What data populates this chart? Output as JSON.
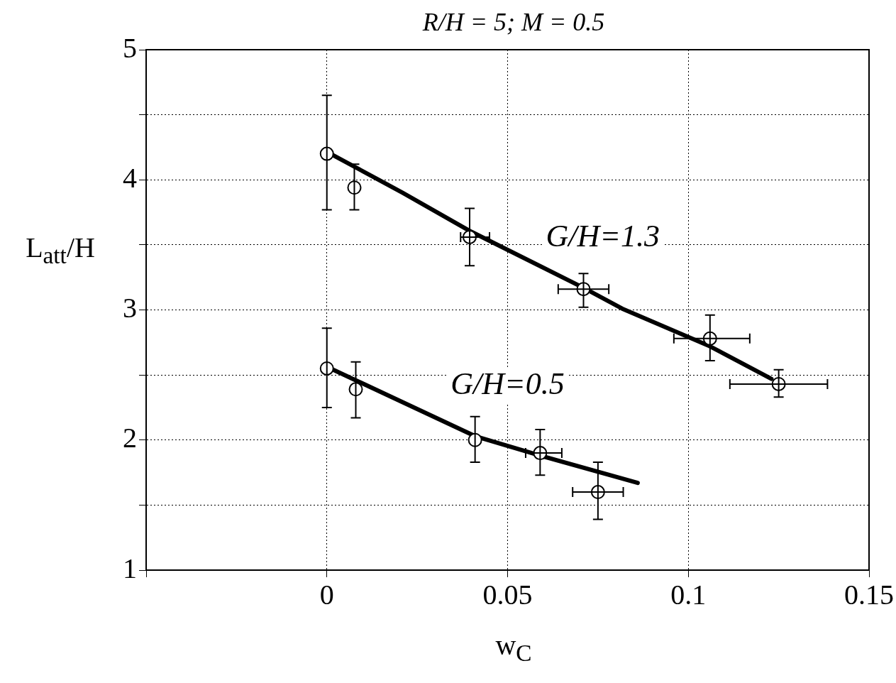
{
  "chart_data": {
    "type": "scatter",
    "title": "R/H = 5;  M = 0.5",
    "xlabel": "w$_{C}$",
    "ylabel": "L$_{att}$/H",
    "xlim": [
      -0.05,
      0.15
    ],
    "ylim": [
      1,
      5
    ],
    "xticks": [
      {
        "value": -0.05,
        "label": null
      },
      0,
      0.05,
      0.1,
      0.15
    ],
    "yticks": [
      1,
      {
        "value": 1.5,
        "label": null
      },
      2,
      {
        "value": 2.5,
        "label": null
      },
      3,
      {
        "value": 3.5,
        "label": null
      },
      4,
      {
        "value": 4.5,
        "label": null
      },
      5
    ],
    "grid": true,
    "legend": false,
    "marker": "circle",
    "series": [
      {
        "color": "#000000",
        "x": [
          0,
          0.0076,
          0.0395,
          0.071,
          0.106,
          0.125
        ],
        "values": [
          4.2,
          3.94,
          3.56,
          3.16,
          2.78,
          2.43
        ],
        "errors": [
          [
            3.77,
            4.65
          ],
          [
            3.77,
            4.12
          ],
          [
            3.34,
            3.78
          ],
          [
            3.02,
            3.28
          ],
          [
            2.61,
            2.96
          ],
          [
            2.33,
            2.54
          ]
        ],
        "xerrors": [
          null,
          null,
          [
            0.037,
            0.045
          ],
          [
            0.064,
            0.078
          ],
          [
            0.096,
            0.117
          ],
          [
            0.1115,
            0.1385
          ]
        ]
      },
      {
        "color": "#000000",
        "x": [
          0,
          0.008,
          0.041,
          0.059,
          0.075
        ],
        "values": [
          2.55,
          2.39,
          2.0,
          1.9,
          1.6
        ],
        "errors": [
          [
            2.25,
            2.86
          ],
          [
            2.17,
            2.6
          ],
          [
            1.83,
            2.18
          ],
          [
            1.73,
            2.08
          ],
          [
            1.39,
            1.83
          ]
        ],
        "xerrors": [
          null,
          null,
          null,
          [
            0.055,
            0.065
          ],
          [
            0.068,
            0.082
          ]
        ]
      },
      {
        "type": "line",
        "name": "G/H=1.3",
        "color": "#000000",
        "marker": "none",
        "x": [
          0.001,
          0.021,
          0.04,
          0.071,
          0.0817,
          0.106,
          0.123
        ],
        "values": [
          4.2,
          3.9,
          3.6,
          3.17,
          3.01,
          2.72,
          2.47
        ]
      },
      {
        "type": "line",
        "name": "G/H=0.5",
        "color": "#000000",
        "marker": "none",
        "x": [
          0.001,
          0.041,
          0.059,
          0.086
        ],
        "values": [
          2.55,
          2.03,
          1.88,
          1.67
        ]
      }
    ]
  }
}
